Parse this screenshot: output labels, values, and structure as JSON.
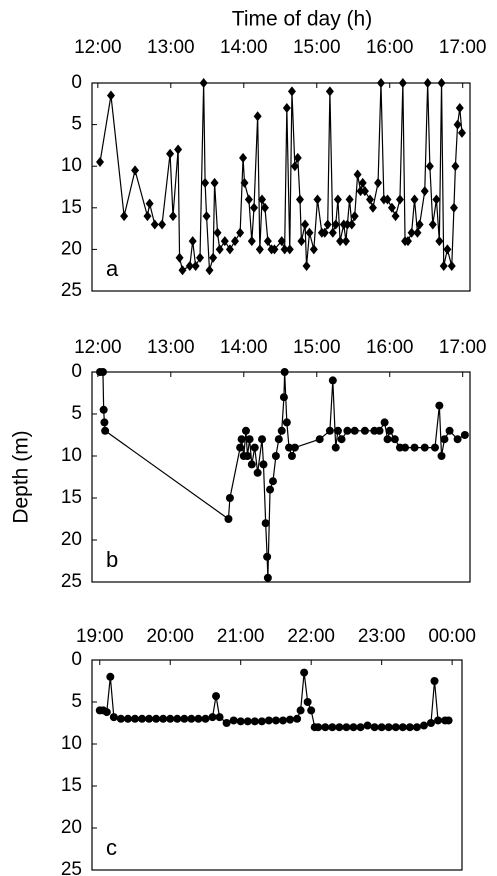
{
  "chart_data": [
    {
      "type": "line",
      "title": "Time of day (h)",
      "panel": "a",
      "marker": "diamond",
      "color": "#000000",
      "y_inverted": true,
      "xlim": [
        11.92,
        17.1
      ],
      "xticks": [
        {
          "value": 12,
          "label": "12:00"
        },
        {
          "value": 13,
          "label": "13:00"
        },
        {
          "value": 14,
          "label": "14:00"
        },
        {
          "value": 15,
          "label": "15:00"
        },
        {
          "value": 16,
          "label": "16:00"
        },
        {
          "value": 17,
          "label": "17:00"
        }
      ],
      "ylim": [
        0,
        25
      ],
      "yticks": [
        0,
        5,
        10,
        15,
        20,
        25
      ],
      "x": [
        12.03,
        12.18,
        12.36,
        12.51,
        12.68,
        12.71,
        12.78,
        12.88,
        12.99,
        13.03,
        13.1,
        13.12,
        13.16,
        13.26,
        13.3,
        13.34,
        13.4,
        13.45,
        13.47,
        13.49,
        13.53,
        13.58,
        13.6,
        13.64,
        13.67,
        13.74,
        13.81,
        13.88,
        13.95,
        13.99,
        14.01,
        14.07,
        14.11,
        14.14,
        14.19,
        14.22,
        14.25,
        14.29,
        14.33,
        14.38,
        14.42,
        14.52,
        14.56,
        14.59,
        14.63,
        14.66,
        14.7,
        14.74,
        14.77,
        14.79,
        14.84,
        14.86,
        14.9,
        14.96,
        15.01,
        15.07,
        15.11,
        15.15,
        15.18,
        15.22,
        15.26,
        15.29,
        15.32,
        15.37,
        15.4,
        15.42,
        15.45,
        15.48,
        15.52,
        15.56,
        15.6,
        15.63,
        15.66,
        15.73,
        15.77,
        15.84,
        15.88,
        15.92,
        15.97,
        16.03,
        16.08,
        16.14,
        16.18,
        16.21,
        16.25,
        16.3,
        16.34,
        16.38,
        16.41,
        16.48,
        16.52,
        16.55,
        16.59,
        16.64,
        16.68,
        16.71,
        16.74,
        16.79,
        16.85,
        16.88,
        16.9,
        16.93,
        16.96,
        16.99
      ],
      "values": [
        9.5,
        1.5,
        16,
        10.5,
        16,
        14.5,
        17,
        17,
        8.5,
        16,
        8,
        21,
        22.5,
        22,
        19,
        22,
        21,
        0,
        12,
        16,
        22.5,
        21,
        12,
        18,
        20,
        19,
        20,
        19,
        18,
        9,
        12,
        14,
        19,
        15,
        4,
        20,
        14,
        15,
        19,
        20,
        20,
        19,
        20,
        3,
        20,
        1,
        10,
        9,
        14,
        19,
        17,
        22,
        18,
        20,
        14,
        18,
        18,
        17,
        1,
        18,
        17,
        14,
        19,
        17,
        19,
        17,
        14,
        17,
        16,
        11,
        13,
        12,
        13,
        14,
        15,
        12,
        0,
        14,
        14,
        15,
        16,
        14,
        0,
        19,
        19,
        18,
        14,
        18,
        17,
        13,
        0,
        10,
        17,
        14,
        19,
        0,
        22,
        20,
        22,
        15,
        10,
        5,
        3,
        6
      ]
    },
    {
      "type": "line",
      "ylabel": "Depth (m)",
      "panel": "b",
      "marker": "circle",
      "color": "#000000",
      "y_inverted": true,
      "xlim": [
        11.92,
        17.1
      ],
      "xticks": [
        {
          "value": 12,
          "label": "12:00"
        },
        {
          "value": 13,
          "label": "13:00"
        },
        {
          "value": 14,
          "label": "14:00"
        },
        {
          "value": 15,
          "label": "15:00"
        },
        {
          "value": 16,
          "label": "16:00"
        },
        {
          "value": 17,
          "label": "17:00"
        }
      ],
      "ylim": [
        0,
        25
      ],
      "yticks": [
        0,
        5,
        10,
        15,
        20,
        25
      ],
      "x": [
        12.03,
        12.07,
        12.08,
        12.09,
        12.1,
        13.79,
        13.81,
        13.95,
        13.97,
        14.0,
        14.03,
        14.05,
        14.08,
        14.11,
        14.15,
        14.19,
        14.25,
        14.27,
        14.3,
        14.32,
        14.33,
        14.36,
        14.4,
        14.44,
        14.48,
        14.52,
        14.55,
        14.56,
        14.59,
        14.62,
        14.66,
        14.7,
        15.04,
        15.18,
        15.22,
        15.26,
        15.29,
        15.34,
        15.42,
        15.52,
        15.66,
        15.79,
        15.86,
        15.93,
        15.97,
        16.0,
        16.07,
        16.14,
        16.21,
        16.34,
        16.48,
        16.62,
        16.68,
        16.71,
        16.75,
        16.82,
        16.93,
        17.03
      ],
      "values": [
        0,
        0,
        4.5,
        6,
        7,
        17.5,
        15,
        9,
        8,
        10,
        7,
        10,
        8,
        11,
        9,
        12,
        8,
        11,
        18,
        22,
        24.5,
        14,
        13,
        10,
        8,
        7,
        3,
        0,
        6,
        9,
        10,
        9,
        8,
        7,
        1,
        9,
        7,
        8,
        7,
        7,
        7,
        7,
        7,
        6,
        8,
        7,
        8,
        9,
        9,
        9,
        9,
        9,
        4,
        10,
        8,
        7,
        8,
        7.5
      ]
    },
    {
      "type": "line",
      "panel": "c",
      "marker": "circle",
      "color": "#000000",
      "y_inverted": true,
      "xlim": [
        18.89,
        24.14
      ],
      "xticks": [
        {
          "value": 19,
          "label": "19:00"
        },
        {
          "value": 20,
          "label": "20:00"
        },
        {
          "value": 21,
          "label": "21:00"
        },
        {
          "value": 22,
          "label": "22:00"
        },
        {
          "value": 23,
          "label": "23:00"
        },
        {
          "value": 24,
          "label": "00:00"
        }
      ],
      "ylim": [
        0,
        25
      ],
      "yticks": [
        0,
        5,
        10,
        15,
        20,
        25
      ],
      "x": [
        19.0,
        19.05,
        19.1,
        19.15,
        19.2,
        19.3,
        19.4,
        19.5,
        19.6,
        19.7,
        19.8,
        19.9,
        20.0,
        20.1,
        20.2,
        20.3,
        20.4,
        20.5,
        20.6,
        20.65,
        20.7,
        20.8,
        20.9,
        21.0,
        21.1,
        21.2,
        21.3,
        21.4,
        21.5,
        21.6,
        21.7,
        21.8,
        21.85,
        21.9,
        21.95,
        22.0,
        22.05,
        22.1,
        22.2,
        22.3,
        22.4,
        22.5,
        22.6,
        22.7,
        22.8,
        22.9,
        23.0,
        23.1,
        23.2,
        23.3,
        23.4,
        23.5,
        23.6,
        23.7,
        23.75,
        23.8,
        23.9,
        23.95
      ],
      "values": [
        6,
        6,
        6.2,
        2,
        6.8,
        7,
        7,
        7,
        7,
        7,
        7,
        7,
        7,
        7,
        7,
        7,
        7,
        7,
        6.8,
        4.3,
        6.8,
        7.5,
        7.2,
        7.3,
        7.3,
        7.3,
        7.3,
        7.2,
        7.2,
        7.2,
        7.1,
        7,
        6,
        1.5,
        5,
        6,
        8,
        8,
        8,
        8,
        8,
        8,
        8,
        8,
        7.8,
        8,
        8,
        8,
        8,
        8,
        8,
        8,
        7.8,
        7.5,
        2.5,
        7.2,
        7.2,
        7.2
      ]
    }
  ]
}
